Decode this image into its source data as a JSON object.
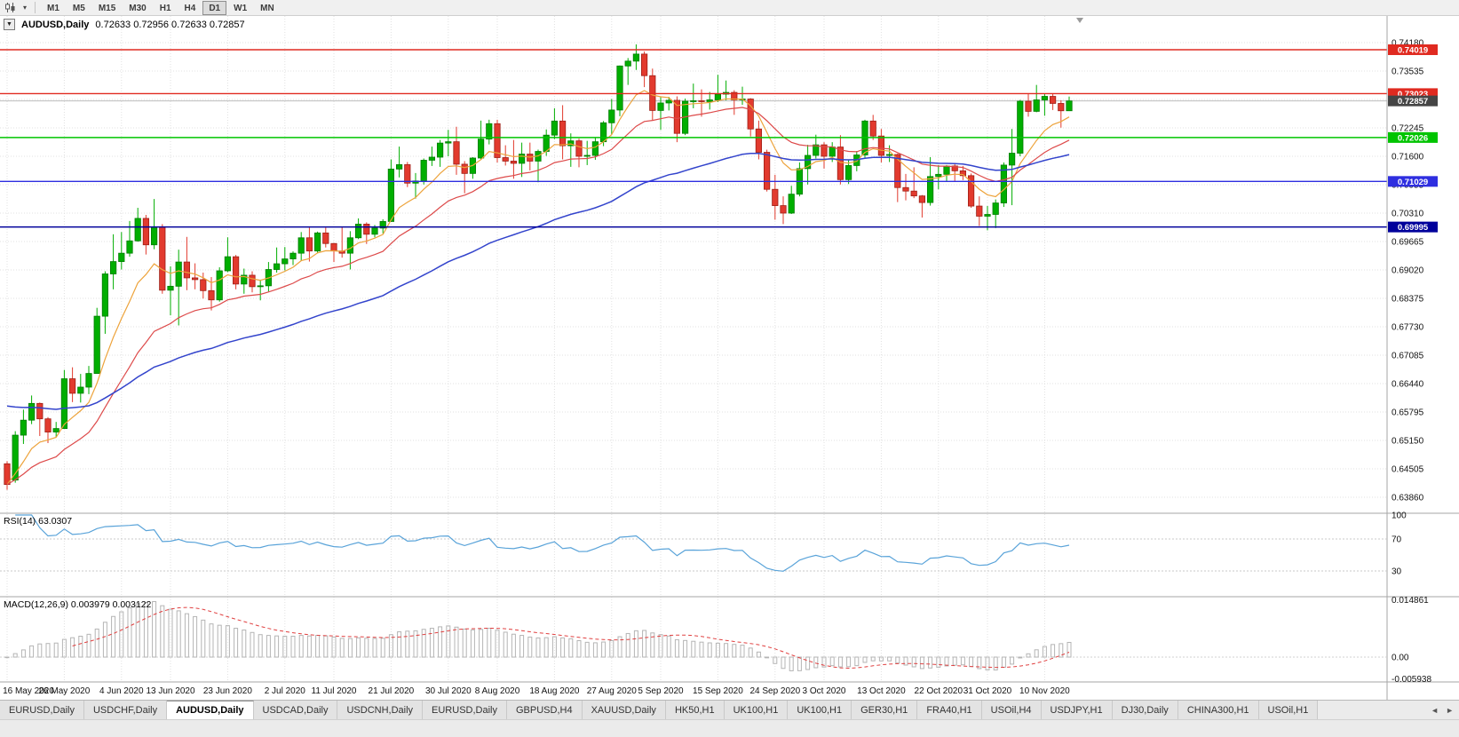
{
  "toolbar": {
    "caret_glyph": "▾",
    "timeframes": [
      {
        "label": "M1",
        "active": false
      },
      {
        "label": "M5",
        "active": false
      },
      {
        "label": "M15",
        "active": false
      },
      {
        "label": "M30",
        "active": false
      },
      {
        "label": "H1",
        "active": false
      },
      {
        "label": "H4",
        "active": false
      },
      {
        "label": "D1",
        "active": true
      },
      {
        "label": "W1",
        "active": false
      },
      {
        "label": "MN",
        "active": false
      }
    ]
  },
  "chart": {
    "title": "AUDUSD,Daily",
    "ohlc": "0.72633 0.72956 0.72633 0.72857",
    "menu_icon_glyph": "▼",
    "price_axis_labels": [
      "0.74180",
      "0.73535",
      "0.72890",
      "0.72245",
      "0.71600",
      "0.70955",
      "0.70310",
      "0.69665",
      "0.69020",
      "0.68375",
      "0.67730",
      "0.67085",
      "0.66440",
      "0.65795",
      "0.65150",
      "0.64505",
      "0.63860"
    ],
    "date_labels": [
      {
        "label": "16 May 2020",
        "bar": 0
      },
      {
        "label": "26 May 2020",
        "bar": 7
      },
      {
        "label": "4 Jun 2020",
        "bar": 14
      },
      {
        "label": "13 Jun 2020",
        "bar": 20
      },
      {
        "label": "23 Jun 2020",
        "bar": 27
      },
      {
        "label": "2 Jul 2020",
        "bar": 34
      },
      {
        "label": "11 Jul 2020",
        "bar": 40
      },
      {
        "label": "21 Jul 2020",
        "bar": 47
      },
      {
        "label": "30 Jul 2020",
        "bar": 54
      },
      {
        "label": "8 Aug 2020",
        "bar": 60
      },
      {
        "label": "18 Aug 2020",
        "bar": 67
      },
      {
        "label": "27 Aug 2020",
        "bar": 74
      },
      {
        "label": "5 Sep 2020",
        "bar": 80
      },
      {
        "label": "15 Sep 2020",
        "bar": 87
      },
      {
        "label": "24 Sep 2020",
        "bar": 94
      },
      {
        "label": "3 Oct 2020",
        "bar": 100
      },
      {
        "label": "13 Oct 2020",
        "bar": 107
      },
      {
        "label": "22 Oct 2020",
        "bar": 114
      },
      {
        "label": "31 Oct 2020",
        "bar": 120
      },
      {
        "label": "10 Nov 2020",
        "bar": 127
      }
    ],
    "hlines": [
      {
        "price": 0.74019,
        "label": "0.74019",
        "color": "#e02a20"
      },
      {
        "price": 0.73023,
        "label": "0.73023",
        "color": "#e02a20"
      },
      {
        "price": 0.72026,
        "label": "0.72026",
        "color": "#00c400"
      },
      {
        "price": 0.71029,
        "label": "0.71029",
        "color": "#2e2ee0"
      },
      {
        "price": 0.69995,
        "label": "0.69995",
        "color": "#00009b"
      }
    ],
    "current_price": {
      "value": 0.72857,
      "label": "0.72857",
      "tag_bg": "#454545",
      "line_color": "#bdbdbd"
    },
    "colors": {
      "up": "#00ae00",
      "down": "#e23a2e",
      "ma_fast": "#eda33b",
      "ma_mid": "#dd4a4a",
      "ma_slow": "#3344cc",
      "grid": "#e0e0e0"
    }
  },
  "chart_data": {
    "type": "candlestick",
    "symbol": "AUDUSD",
    "timeframe": "Daily",
    "ylim": [
      0.6386,
      0.7418
    ],
    "overlays": [
      {
        "name": "ma-fast",
        "method": "ema",
        "period": 8,
        "color": "#eda33b"
      },
      {
        "name": "ma-mid",
        "method": "ema",
        "period": 20,
        "color": "#dd4a4a"
      },
      {
        "name": "ma-slow",
        "method": "ema",
        "period": 55,
        "color": "#3344cc"
      }
    ],
    "indicators": {
      "rsi": {
        "period": 14,
        "last": 63.0307
      },
      "macd": {
        "fast": 12,
        "slow": 26,
        "signal": 9,
        "last_macd": 0.003979,
        "last_signal": 0.003122
      }
    },
    "ohlc": [
      [
        0.6462,
        0.6468,
        0.6403,
        0.6415
      ],
      [
        0.6425,
        0.6536,
        0.6419,
        0.6527
      ],
      [
        0.6527,
        0.6585,
        0.6507,
        0.6561
      ],
      [
        0.6561,
        0.6617,
        0.6552,
        0.6599
      ],
      [
        0.6599,
        0.6601,
        0.6525,
        0.6564
      ],
      [
        0.6564,
        0.6568,
        0.6509,
        0.6534
      ],
      [
        0.6534,
        0.6557,
        0.6522,
        0.6542
      ],
      [
        0.6542,
        0.6675,
        0.6542,
        0.6655
      ],
      [
        0.6655,
        0.6681,
        0.6602,
        0.6622
      ],
      [
        0.6622,
        0.6666,
        0.6601,
        0.6636
      ],
      [
        0.6636,
        0.6684,
        0.662,
        0.6667
      ],
      [
        0.6667,
        0.6816,
        0.6667,
        0.6797
      ],
      [
        0.6797,
        0.6899,
        0.6757,
        0.6893
      ],
      [
        0.6893,
        0.6983,
        0.6858,
        0.6921
      ],
      [
        0.6921,
        0.6988,
        0.6903,
        0.694
      ],
      [
        0.694,
        0.7013,
        0.6932,
        0.6968
      ],
      [
        0.6968,
        0.7043,
        0.6966,
        0.7019
      ],
      [
        0.7019,
        0.7027,
        0.6937,
        0.6959
      ],
      [
        0.6959,
        0.7063,
        0.6949,
        0.7
      ],
      [
        0.7,
        0.7006,
        0.6848,
        0.6856
      ],
      [
        0.6856,
        0.691,
        0.6799,
        0.6865
      ],
      [
        0.6865,
        0.6948,
        0.6776,
        0.692
      ],
      [
        0.692,
        0.6977,
        0.6856,
        0.6884
      ],
      [
        0.6884,
        0.6917,
        0.6858,
        0.688
      ],
      [
        0.688,
        0.6896,
        0.6837,
        0.6855
      ],
      [
        0.6855,
        0.6886,
        0.681,
        0.6834
      ],
      [
        0.6834,
        0.6908,
        0.683,
        0.69
      ],
      [
        0.69,
        0.6976,
        0.6897,
        0.6932
      ],
      [
        0.6932,
        0.6936,
        0.6858,
        0.687
      ],
      [
        0.687,
        0.6905,
        0.6848,
        0.689
      ],
      [
        0.689,
        0.6899,
        0.6851,
        0.6864
      ],
      [
        0.6864,
        0.688,
        0.6833,
        0.6866
      ],
      [
        0.6866,
        0.692,
        0.6853,
        0.6903
      ],
      [
        0.6903,
        0.6953,
        0.6896,
        0.6916
      ],
      [
        0.6916,
        0.6954,
        0.6901,
        0.6927
      ],
      [
        0.6927,
        0.6944,
        0.6913,
        0.694
      ],
      [
        0.694,
        0.6988,
        0.6922,
        0.6975
      ],
      [
        0.6975,
        0.6998,
        0.6921,
        0.6945
      ],
      [
        0.6945,
        0.6989,
        0.694,
        0.6986
      ],
      [
        0.6986,
        0.6998,
        0.6953,
        0.6962
      ],
      [
        0.6962,
        0.6963,
        0.692,
        0.6945
      ],
      [
        0.6945,
        0.7,
        0.693,
        0.694
      ],
      [
        0.694,
        0.699,
        0.6903,
        0.6975
      ],
      [
        0.6975,
        0.7019,
        0.6972,
        0.7006
      ],
      [
        0.7006,
        0.701,
        0.6961,
        0.6983
      ],
      [
        0.6983,
        0.7004,
        0.6976,
        0.6997
      ],
      [
        0.6997,
        0.7017,
        0.6985,
        0.7012
      ],
      [
        0.7012,
        0.7153,
        0.7011,
        0.7131
      ],
      [
        0.7131,
        0.7182,
        0.7112,
        0.7141
      ],
      [
        0.7141,
        0.7147,
        0.709,
        0.7099
      ],
      [
        0.7099,
        0.7122,
        0.7064,
        0.7104
      ],
      [
        0.7104,
        0.7155,
        0.7096,
        0.7151
      ],
      [
        0.7151,
        0.7182,
        0.7138,
        0.7158
      ],
      [
        0.7158,
        0.7197,
        0.7136,
        0.719
      ],
      [
        0.719,
        0.722,
        0.716,
        0.7193
      ],
      [
        0.7193,
        0.7227,
        0.7118,
        0.7142
      ],
      [
        0.7142,
        0.7149,
        0.7076,
        0.7121
      ],
      [
        0.7121,
        0.7158,
        0.7109,
        0.7156
      ],
      [
        0.7156,
        0.7241,
        0.7153,
        0.7199
      ],
      [
        0.7199,
        0.7243,
        0.7187,
        0.7234
      ],
      [
        0.7234,
        0.7243,
        0.7146,
        0.7157
      ],
      [
        0.7157,
        0.7185,
        0.7139,
        0.7149
      ],
      [
        0.7149,
        0.7197,
        0.7109,
        0.7144
      ],
      [
        0.7144,
        0.7191,
        0.7113,
        0.7165
      ],
      [
        0.7165,
        0.7191,
        0.7128,
        0.7149
      ],
      [
        0.7149,
        0.7175,
        0.7101,
        0.7171
      ],
      [
        0.7171,
        0.7221,
        0.7161,
        0.7208
      ],
      [
        0.7208,
        0.7269,
        0.7199,
        0.724
      ],
      [
        0.724,
        0.7276,
        0.7153,
        0.7184
      ],
      [
        0.7184,
        0.7212,
        0.7136,
        0.7195
      ],
      [
        0.7195,
        0.72,
        0.7135,
        0.716
      ],
      [
        0.716,
        0.7195,
        0.714,
        0.7162
      ],
      [
        0.7162,
        0.7202,
        0.7152,
        0.7193
      ],
      [
        0.7193,
        0.724,
        0.7183,
        0.7236
      ],
      [
        0.7236,
        0.729,
        0.721,
        0.7265
      ],
      [
        0.7265,
        0.7366,
        0.7251,
        0.7365
      ],
      [
        0.7365,
        0.7383,
        0.7322,
        0.7376
      ],
      [
        0.7376,
        0.7414,
        0.7356,
        0.7392
      ],
      [
        0.7392,
        0.7398,
        0.7317,
        0.7343
      ],
      [
        0.7343,
        0.7359,
        0.7242,
        0.7264
      ],
      [
        0.7264,
        0.7294,
        0.722,
        0.7281
      ],
      [
        0.7281,
        0.7295,
        0.7264,
        0.7287
      ],
      [
        0.7287,
        0.7296,
        0.7192,
        0.7212
      ],
      [
        0.7212,
        0.7291,
        0.7208,
        0.7285
      ],
      [
        0.7285,
        0.7325,
        0.7269,
        0.7286
      ],
      [
        0.7286,
        0.7312,
        0.725,
        0.7284
      ],
      [
        0.7284,
        0.7306,
        0.7266,
        0.7288
      ],
      [
        0.7288,
        0.7345,
        0.7283,
        0.7301
      ],
      [
        0.7301,
        0.7332,
        0.7287,
        0.7305
      ],
      [
        0.7305,
        0.731,
        0.7254,
        0.7288
      ],
      [
        0.7288,
        0.7318,
        0.7277,
        0.729
      ],
      [
        0.729,
        0.7292,
        0.7205,
        0.7222
      ],
      [
        0.7222,
        0.7241,
        0.7153,
        0.7169
      ],
      [
        0.7169,
        0.7175,
        0.708,
        0.7085
      ],
      [
        0.7085,
        0.7118,
        0.7016,
        0.7048
      ],
      [
        0.7048,
        0.7069,
        0.7006,
        0.7031
      ],
      [
        0.7031,
        0.7093,
        0.7029,
        0.7074
      ],
      [
        0.7074,
        0.7146,
        0.7069,
        0.7132
      ],
      [
        0.7132,
        0.7186,
        0.7096,
        0.7162
      ],
      [
        0.7162,
        0.7209,
        0.7155,
        0.7186
      ],
      [
        0.7186,
        0.7192,
        0.7132,
        0.716
      ],
      [
        0.716,
        0.7192,
        0.7147,
        0.7181
      ],
      [
        0.7181,
        0.7208,
        0.7096,
        0.7107
      ],
      [
        0.7107,
        0.7151,
        0.7097,
        0.7139
      ],
      [
        0.7139,
        0.7172,
        0.7126,
        0.7163
      ],
      [
        0.7163,
        0.7243,
        0.7157,
        0.724
      ],
      [
        0.724,
        0.7254,
        0.7197,
        0.7206
      ],
      [
        0.7206,
        0.7222,
        0.7146,
        0.7162
      ],
      [
        0.7162,
        0.7185,
        0.7147,
        0.7164
      ],
      [
        0.7164,
        0.7166,
        0.7056,
        0.7089
      ],
      [
        0.7089,
        0.712,
        0.706,
        0.7081
      ],
      [
        0.7081,
        0.7135,
        0.7065,
        0.707
      ],
      [
        0.707,
        0.7072,
        0.7021,
        0.7055
      ],
      [
        0.7055,
        0.7158,
        0.7048,
        0.7114
      ],
      [
        0.7114,
        0.714,
        0.7085,
        0.7119
      ],
      [
        0.7119,
        0.714,
        0.7102,
        0.7138
      ],
      [
        0.7138,
        0.7145,
        0.7103,
        0.7127
      ],
      [
        0.7127,
        0.7138,
        0.7106,
        0.7116
      ],
      [
        0.7116,
        0.7121,
        0.7043,
        0.7047
      ],
      [
        0.7047,
        0.7069,
        0.7002,
        0.7024
      ],
      [
        0.7024,
        0.7047,
        0.6992,
        0.7028
      ],
      [
        0.7028,
        0.7062,
        0.6997,
        0.7054
      ],
      [
        0.7054,
        0.7146,
        0.7045,
        0.714
      ],
      [
        0.714,
        0.7222,
        0.7049,
        0.7167
      ],
      [
        0.7167,
        0.7288,
        0.716,
        0.7285
      ],
      [
        0.7285,
        0.7302,
        0.725,
        0.7262
      ],
      [
        0.7262,
        0.7322,
        0.726,
        0.7288
      ],
      [
        0.7288,
        0.7302,
        0.7252,
        0.7296
      ],
      [
        0.7296,
        0.7302,
        0.7265,
        0.728
      ],
      [
        0.728,
        0.7287,
        0.7225,
        0.72633
      ],
      [
        0.72633,
        0.72956,
        0.72633,
        0.72857
      ]
    ]
  },
  "rsi": {
    "label": "RSI(14)",
    "value": "63.0307",
    "period": 14,
    "levels": [
      "100",
      "70",
      "30"
    ],
    "color": "#59a3d9"
  },
  "macd": {
    "label": "MACD(12,26,9)",
    "values": "0.003979 0.003122",
    "fast": 12,
    "slow": 26,
    "signal": 9,
    "scale_max": 0.014861,
    "scale_min": -0.005938,
    "axis_labels": [
      "0.014861",
      "0.00",
      "-0.005938"
    ],
    "hist_color": "#b4b4b4",
    "signal_color": "#e04040"
  },
  "tabs": {
    "left_arrow": "◄",
    "right_arrow": "►",
    "items": [
      {
        "label": "EURUSD,Daily",
        "active": false
      },
      {
        "label": "USDCHF,Daily",
        "active": false
      },
      {
        "label": "AUDUSD,Daily",
        "active": true
      },
      {
        "label": "USDCAD,Daily",
        "active": false
      },
      {
        "label": "USDCNH,Daily",
        "active": false
      },
      {
        "label": "EURUSD,Daily",
        "active": false
      },
      {
        "label": "GBPUSD,H4",
        "active": false
      },
      {
        "label": "XAUUSD,Daily",
        "active": false
      },
      {
        "label": "HK50,H1",
        "active": false
      },
      {
        "label": "UK100,H1",
        "active": false
      },
      {
        "label": "UK100,H1",
        "active": false
      },
      {
        "label": "GER30,H1",
        "active": false
      },
      {
        "label": "FRA40,H1",
        "active": false
      },
      {
        "label": "USOil,H4",
        "active": false
      },
      {
        "label": "USDJPY,H1",
        "active": false
      },
      {
        "label": "DJ30,Daily",
        "active": false
      },
      {
        "label": "CHINA300,H1",
        "active": false
      },
      {
        "label": "USOil,H1",
        "active": false
      }
    ]
  }
}
